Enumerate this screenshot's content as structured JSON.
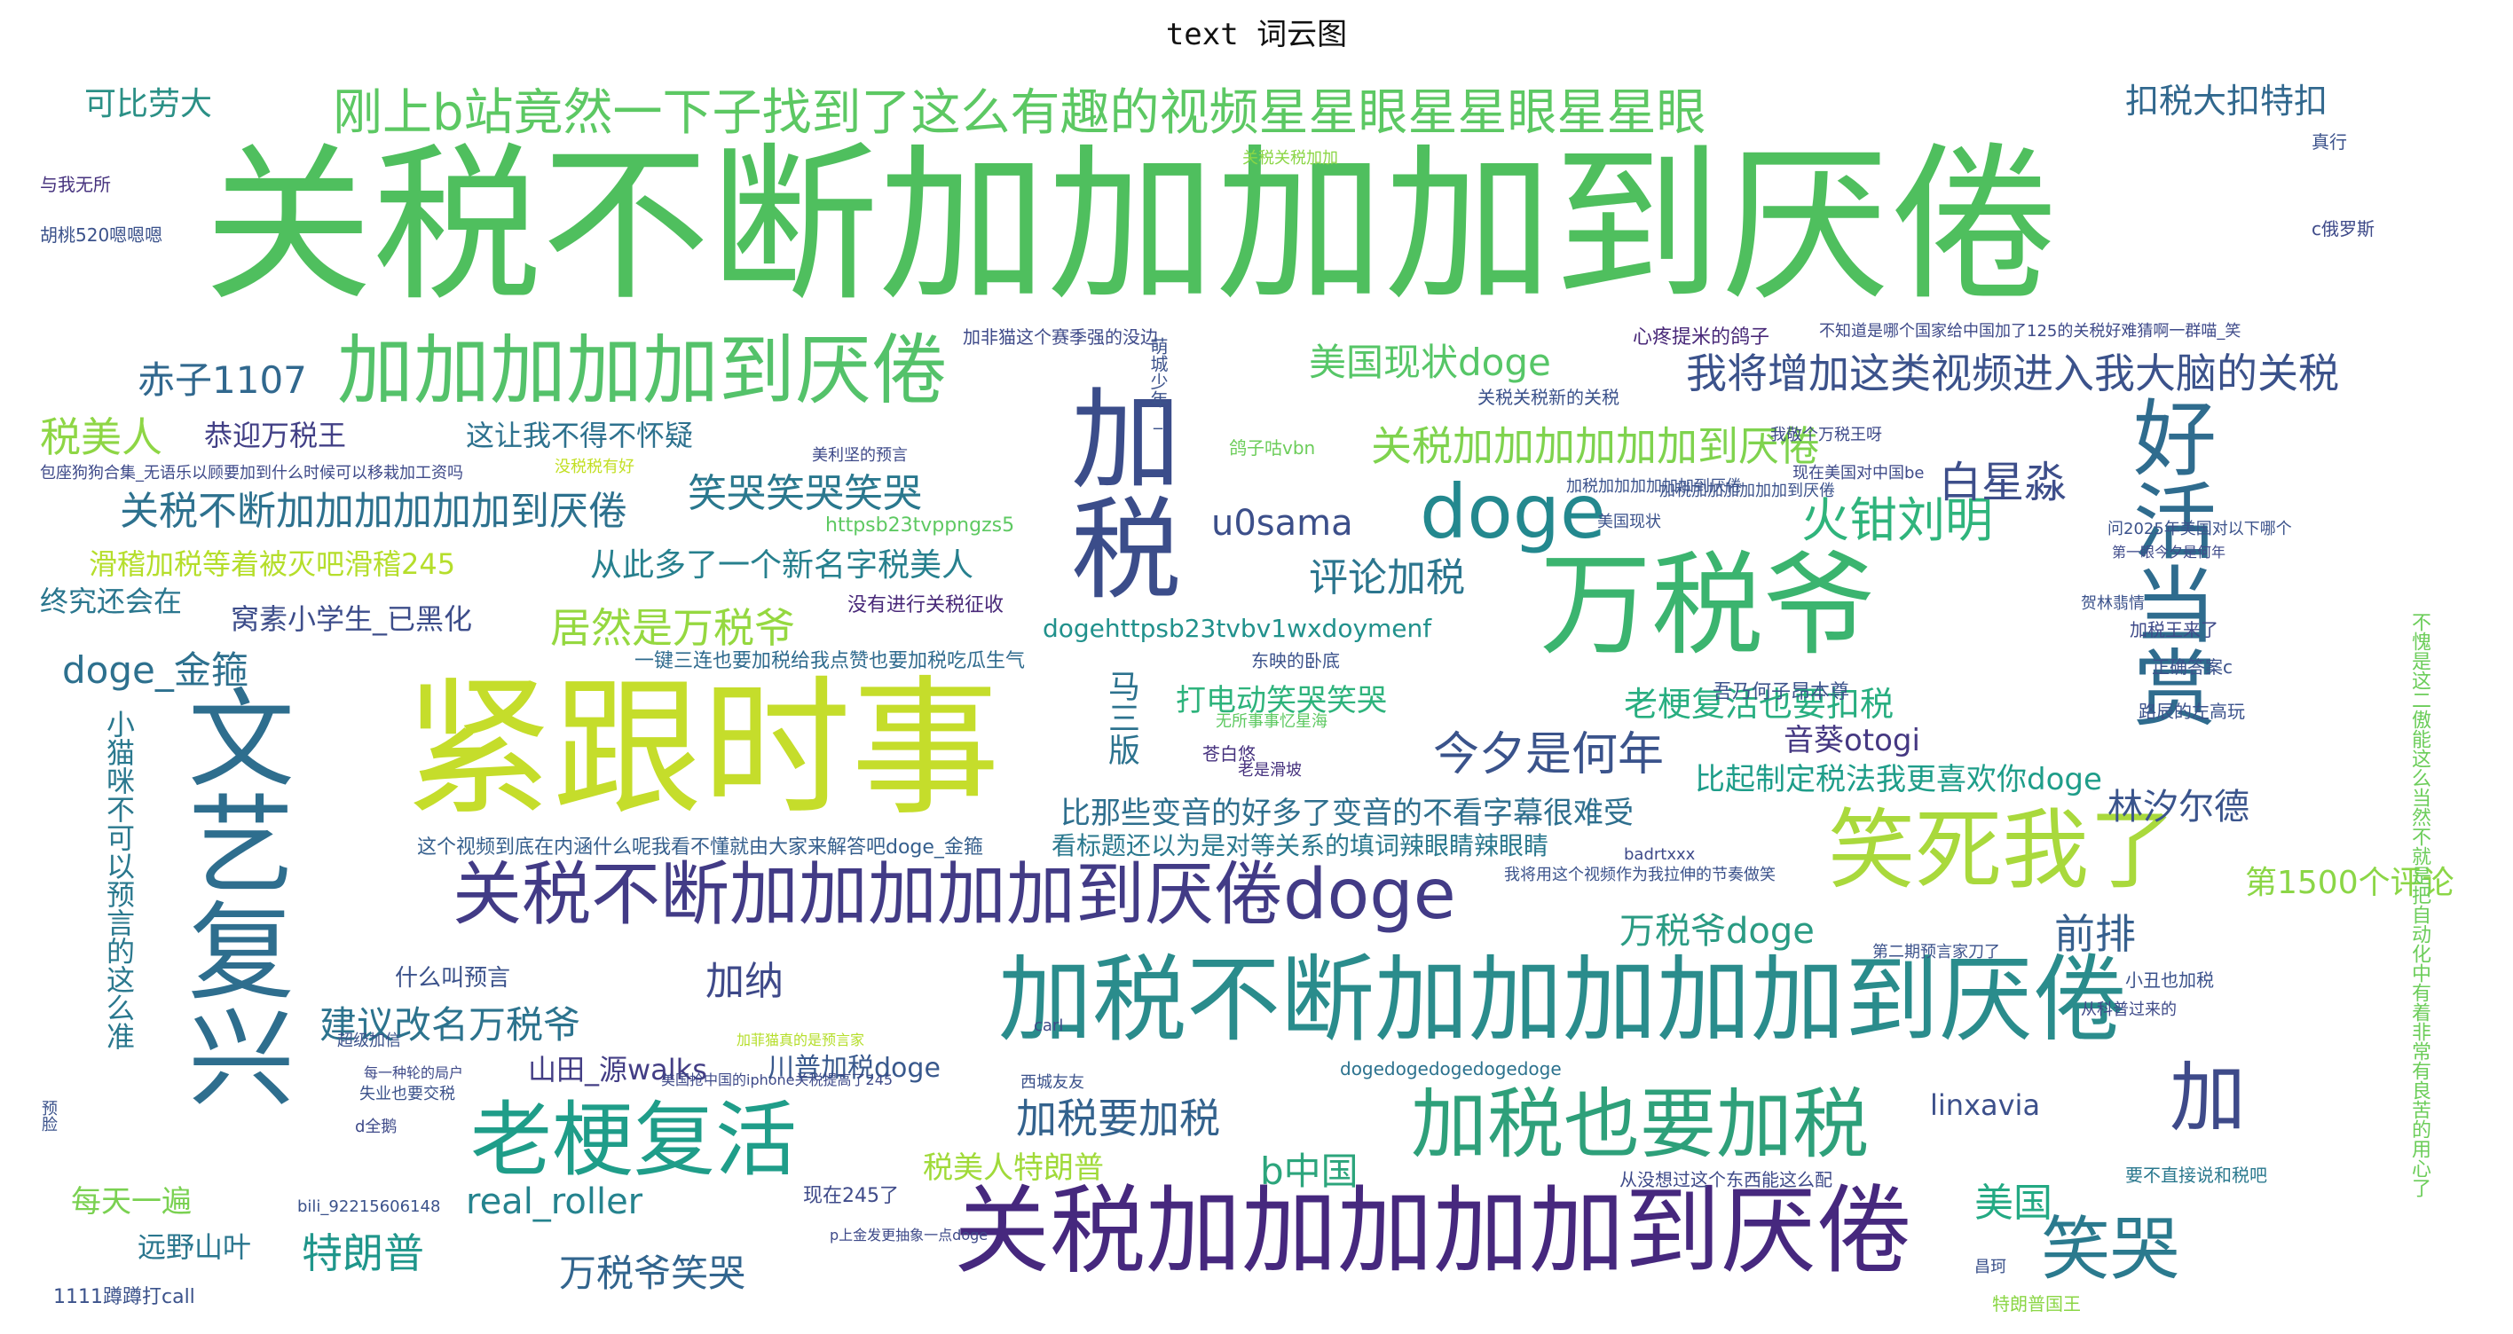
{
  "title": "text 词云图",
  "words": [
    {
      "text": "关税不断加加加加到厌倦",
      "color": "#4fbf5e"
    },
    {
      "text": "紧跟时事",
      "color": "#c5dd2b"
    },
    {
      "text": "加税不断加加加加加到厌倦",
      "color": "#2a8c8c"
    },
    {
      "text": "关税加加加加加到厌倦",
      "color": "#46287e"
    },
    {
      "text": "关税不断加加加加加到厌倦doge",
      "color": "#423b86"
    },
    {
      "text": "加加加加加到厌倦",
      "color": "#54c26a"
    },
    {
      "text": "万税爷",
      "color": "#3bb46f"
    },
    {
      "text": "文艺复兴",
      "color": "#2e6e8e"
    },
    {
      "text": "加税",
      "color": "#3b4d8a"
    },
    {
      "text": "好活当赏",
      "color": "#2f6c8e"
    },
    {
      "text": "笑死我了",
      "color": "#a9d93c"
    },
    {
      "text": "加税也要加税",
      "color": "#2ea07a"
    },
    {
      "text": "老梗复活",
      "color": "#1f9d89"
    },
    {
      "text": "doge",
      "color": "#23888e"
    },
    {
      "text": "笑哭",
      "color": "#2b7a8e"
    },
    {
      "text": "加",
      "color": "#3e4a89"
    },
    {
      "text": "刚上b站竟然一下子找到了这么有趣的视频星星眼星星眼星星眼",
      "color": "#5cc863"
    },
    {
      "text": "我将增加这类视频进入我大脑的关税",
      "color": "#3b528b"
    },
    {
      "text": "关税加加加加加加到厌倦",
      "color": "#7fd34e"
    },
    {
      "text": "关税不断加加加加加加到厌倦",
      "color": "#2d718e"
    },
    {
      "text": "美国现状doge",
      "color": "#56c667"
    },
    {
      "text": "税美人",
      "color": "#8ed645"
    },
    {
      "text": "火钳刘明",
      "color": "#2fb47c"
    },
    {
      "text": "白星淼",
      "color": "#3d4e8a"
    },
    {
      "text": "今夕是何年",
      "color": "#3a538b"
    },
    {
      "text": "赤子1107",
      "color": "#31688e"
    },
    {
      "text": "笑哭笑哭笑哭",
      "color": "#2a788e"
    },
    {
      "text": "居然是万税爷",
      "color": "#95d840"
    },
    {
      "text": "评论加税",
      "color": "#2b758e"
    },
    {
      "text": "u0sama",
      "color": "#3c4f8a"
    },
    {
      "text": "建议改名万税爷",
      "color": "#2c738e"
    },
    {
      "text": "doge_金箍",
      "color": "#2d708e"
    },
    {
      "text": "加税要加税",
      "color": "#33628d"
    },
    {
      "text": "加纳",
      "color": "#3e4989"
    },
    {
      "text": "real_roller",
      "color": "#25838e"
    },
    {
      "text": "特朗普",
      "color": "#1f968b"
    },
    {
      "text": "万税爷笑哭",
      "color": "#32658e"
    },
    {
      "text": "万税爷doge",
      "color": "#2a9b83"
    },
    {
      "text": "前排",
      "color": "#355f8d"
    },
    {
      "text": "美国",
      "color": "#23a983"
    },
    {
      "text": "b中国",
      "color": "#2ca57c"
    },
    {
      "text": "林汐尔德",
      "color": "#3a548c"
    },
    {
      "text": "扣税大扣特扣",
      "color": "#31688e"
    },
    {
      "text": "可比劳大",
      "color": "#2b9086"
    },
    {
      "text": "马三版",
      "color": "#2c728e"
    },
    {
      "text": "从此多了一个新名字税美人",
      "color": "#27808e"
    },
    {
      "text": "比那些变音的好多了变音的不看字幕很难受",
      "color": "#2e6f8e"
    },
    {
      "text": "老梗复活也要扣税",
      "color": "#28ae80"
    },
    {
      "text": "比起制定税法我更喜欢你doge",
      "color": "#1e9d89"
    },
    {
      "text": "音葵otogi",
      "color": "#453882"
    },
    {
      "text": "打电动笑哭笑哭",
      "color": "#2eb37c"
    },
    {
      "text": "恭迎万税王",
      "color": "#424086"
    },
    {
      "text": "这让我不得不怀疑",
      "color": "#2d718e"
    },
    {
      "text": "滑稽加税等着被灭吧滑稽245",
      "color": "#b5de2b"
    },
    {
      "text": "终究还会在",
      "color": "#2a768e"
    },
    {
      "text": "窝素小学生_已黑化",
      "color": "#3d4d8a"
    },
    {
      "text": "山田_源walks",
      "color": "#433e85"
    },
    {
      "text": "川普加税doge",
      "color": "#38588c"
    },
    {
      "text": "税美人特朗普",
      "color": "#a0da39"
    },
    {
      "text": "每天一遍",
      "color": "#7ad151"
    },
    {
      "text": "远野山叶",
      "color": "#2a768e"
    },
    {
      "text": "小猫咪不可以预言的这么准",
      "color": "#2a788e"
    },
    {
      "text": "第1500个评论",
      "color": "#8bd646"
    },
    {
      "text": "linxavia",
      "color": "#3c508b"
    },
    {
      "text": "dogehttpsb23tvbv1wxdoymenf",
      "color": "#21918c"
    },
    {
      "text": "什么叫预言",
      "color": "#3b528b"
    },
    {
      "text": "没有进行关税征收",
      "color": "#482878"
    },
    {
      "text": "一键三连也要加税给我点赞也要加税吃瓜生气",
      "color": "#2f6b8e"
    },
    {
      "text": "这个视频到底在内涵什么呢我看不懂就由大家来解答吧doge_金箍",
      "color": "#355f8d"
    },
    {
      "text": "看标题还以为是对等关系的填词辣眼睛辣眼睛",
      "color": "#2a788e"
    },
    {
      "text": "httpsb23tvppngzs5",
      "color": "#5ec962"
    },
    {
      "text": "吾乃何子昂本尊",
      "color": "#3b528b"
    },
    {
      "text": "dogedogedogedogedoge",
      "color": "#2c728e"
    },
    {
      "text": "心疼提米的鸽子",
      "color": "#482878"
    },
    {
      "text": "不知道是哪个国家给中国加了125的关税好难猜啊一群喵_笑",
      "color": "#3e4a89"
    },
    {
      "text": "关税关税新的关税",
      "color": "#3b528b"
    },
    {
      "text": "加非猫这个赛季强的没边",
      "color": "#3e4a89"
    },
    {
      "text": "萌城少年_",
      "color": "#3b528b"
    },
    {
      "text": "从没想过这个东西能这么配",
      "color": "#3e4a89"
    },
    {
      "text": "不愧是这二傲能这么当然不就是把自动化中有着非常有良苦的用心了",
      "color": "#6ccd5a"
    },
    {
      "text": "现在245了",
      "color": "#3e4a89"
    },
    {
      "text": "要不直接说和税吧",
      "color": "#2a788e"
    },
    {
      "text": "1111蹲蹲打call",
      "color": "#3b528b"
    },
    {
      "text": "与我无所",
      "color": "#46327e"
    },
    {
      "text": "c俄罗斯",
      "color": "#3e4a89"
    },
    {
      "text": "真行",
      "color": "#3b528b"
    },
    {
      "text": "白星淼",
      "color": "#3d4e8a"
    },
    {
      "text": "第1500个评论",
      "color": "#8bd646"
    },
    {
      "text": "苍白悠",
      "color": "#46327e"
    },
    {
      "text": "东映的卧底",
      "color": "#3b528b"
    },
    {
      "text": "老是滑坡",
      "color": "#46327e"
    },
    {
      "text": "鸽子咕vbn",
      "color": "#6ccd5a"
    },
    {
      "text": "没税税有好",
      "color": "#c2df23"
    },
    {
      "text": "美国现状",
      "color": "#3b528b"
    },
    {
      "text": "加税王来了",
      "color": "#3e4a89"
    },
    {
      "text": "正确答案c",
      "color": "#3b528b"
    },
    {
      "text": "路辰的左高玩",
      "color": "#3b528b"
    },
    {
      "text": "现在美国对中国be",
      "color": "#3e4a89"
    },
    {
      "text": "加税加加加加加加到厌倦",
      "color": "#3b528b"
    },
    {
      "text": "我敬个万税王呀",
      "color": "#3e4a89"
    },
    {
      "text": "问2025年美国对以下哪个",
      "color": "#3b528b"
    },
    {
      "text": "第一眼今夕是何年",
      "color": "#3e4a89"
    },
    {
      "text": "小丑也加税",
      "color": "#3b528b"
    },
    {
      "text": "特朗普国王",
      "color": "#8bd646"
    },
    {
      "text": "昌珂",
      "color": "#3b528b"
    },
    {
      "text": "从科普过来的",
      "color": "#3e4a89"
    },
    {
      "text": "第二期预言家刀了",
      "color": "#3b528b"
    },
    {
      "text": "badrtxxx",
      "color": "#3e4a89"
    },
    {
      "text": "我将用这个视频作为我拉伸的节奏做笑",
      "color": "#3b528b"
    },
    {
      "text": "无所事事忆星海",
      "color": "#5ec962"
    },
    {
      "text": "超级加信",
      "color": "#3b528b"
    },
    {
      "text": "d全鹅",
      "color": "#3e4a89"
    },
    {
      "text": "失业也要交税",
      "color": "#3b528b"
    },
    {
      "text": "美国抢中国的iphone关税提高了245",
      "color": "#3e4a89"
    },
    {
      "text": "加菲猫真的是预言家",
      "color": "#b5de2b"
    },
    {
      "text": "西城友友",
      "color": "#3b528b"
    },
    {
      "text": "carl",
      "color": "#3e4a89"
    },
    {
      "text": "bili_92215606148",
      "color": "#3b528b"
    },
    {
      "text": "p上金发更抽象一点doge",
      "color": "#3e4a89"
    },
    {
      "text": "胡桃520嗯嗯嗯",
      "color": "#3b528b"
    },
    {
      "text": "包座狗狗合集_无语乐以顾要加到什么时候可以移栽加工资吗",
      "color": "#3e4a89"
    },
    {
      "text": "预脸",
      "color": "#3b528b"
    },
    {
      "text": "每一种轮的局户",
      "color": "#3e4a89"
    },
    {
      "text": "关税关税加加",
      "color": "#8bd646"
    },
    {
      "text": "加税加加加加加加到厌倦",
      "color": "#3b528b"
    },
    {
      "text": "美利坚的预言",
      "color": "#3e4a89"
    },
    {
      "text": "贺林翡情",
      "color": "#3b528b"
    },
    {
      "text": "b中国",
      "color": "#2ca57c"
    }
  ]
}
